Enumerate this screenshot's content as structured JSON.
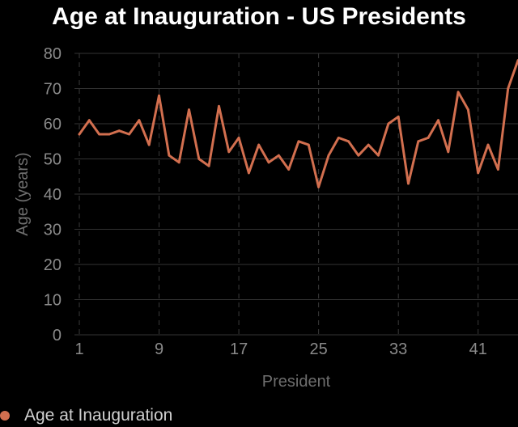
{
  "chart_data": {
    "type": "line",
    "title": "Age at Inauguration - US Presidents",
    "xlabel": "President",
    "ylabel": "Age (years)",
    "xlim": [
      1,
      45
    ],
    "ylim": [
      0,
      80
    ],
    "x_ticks": [
      1,
      9,
      17,
      25,
      33,
      41
    ],
    "y_ticks": [
      0,
      10,
      20,
      30,
      40,
      50,
      60,
      70,
      80
    ],
    "grid": true,
    "legend_position": "bottom-left",
    "series": [
      {
        "name": "Age at Inauguration",
        "color": "#d26f4f",
        "x": [
          1,
          2,
          3,
          4,
          5,
          6,
          7,
          8,
          9,
          10,
          11,
          12,
          13,
          14,
          15,
          16,
          17,
          18,
          19,
          20,
          21,
          22,
          23,
          24,
          25,
          26,
          27,
          28,
          29,
          30,
          31,
          32,
          33,
          34,
          35,
          36,
          37,
          38,
          39,
          40,
          41,
          42,
          43,
          44,
          45
        ],
        "values": [
          57,
          61,
          57,
          57,
          58,
          57,
          61,
          54,
          68,
          51,
          49,
          64,
          50,
          48,
          65,
          52,
          56,
          46,
          54,
          49,
          51,
          47,
          55,
          54,
          42,
          51,
          56,
          55,
          51,
          54,
          51,
          60,
          62,
          43,
          55,
          56,
          61,
          52,
          69,
          64,
          46,
          54,
          47,
          70,
          78
        ]
      }
    ]
  }
}
